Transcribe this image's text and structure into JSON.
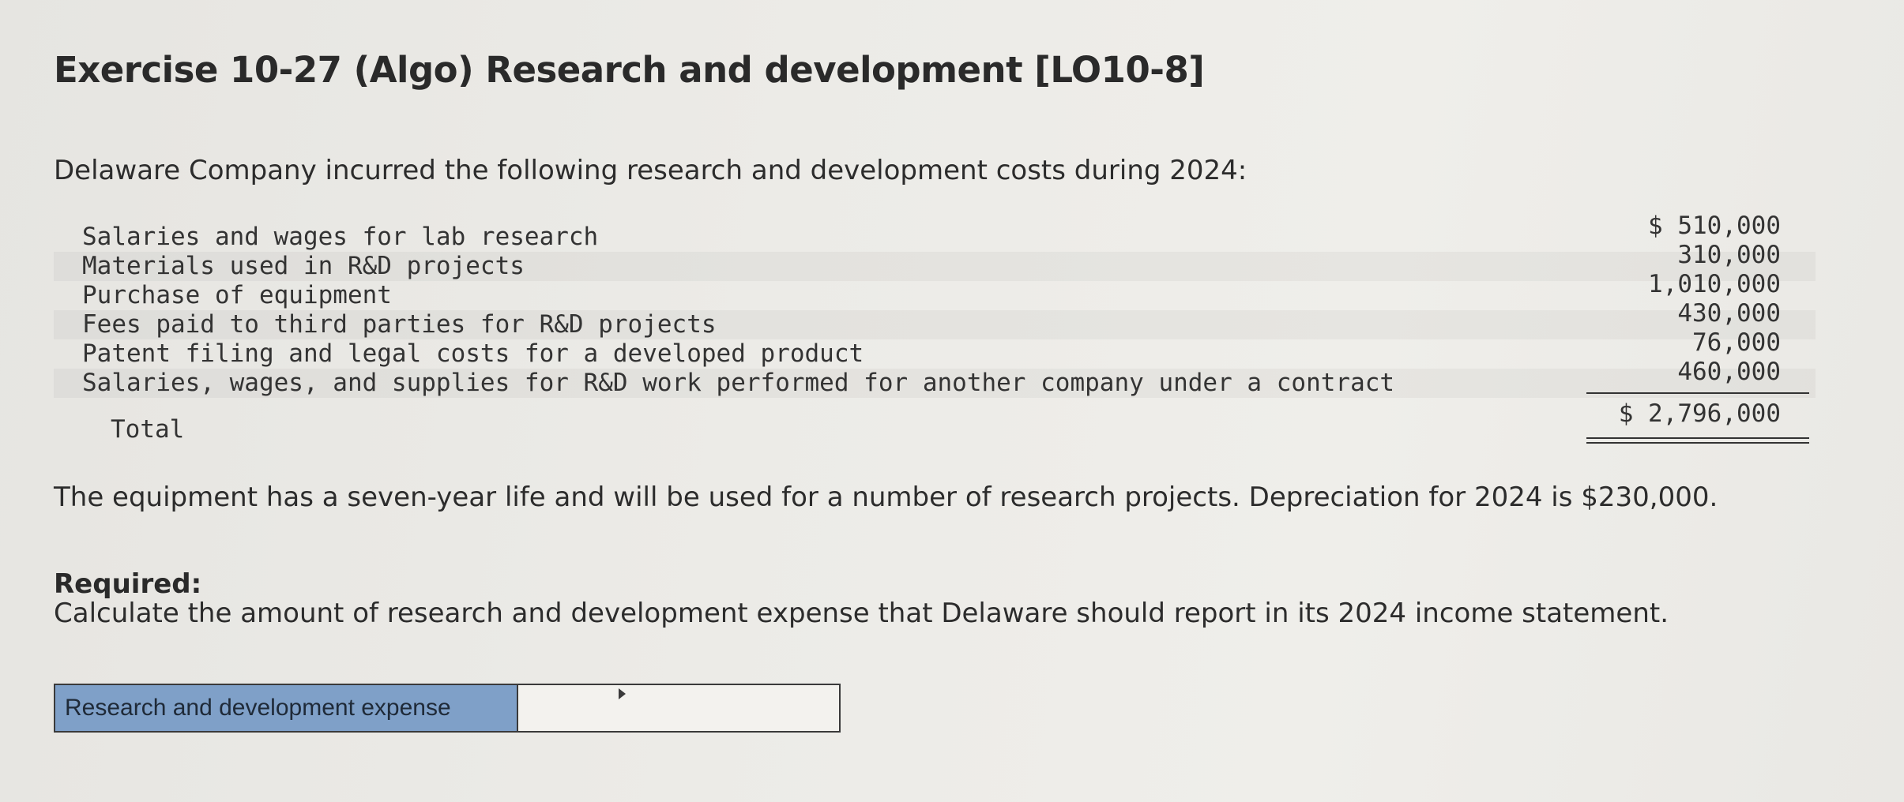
{
  "header": {
    "title": "Exercise 10-27 (Algo) Research and development [LO10-8]"
  },
  "problem": {
    "intro": "Delaware Company incurred the following research and development costs during 2024:",
    "costs": [
      {
        "label": "Salaries and wages for lab research",
        "amount": "$ 510,000"
      },
      {
        "label": "Materials used in R&D projects",
        "amount": "310,000"
      },
      {
        "label": "Purchase of equipment",
        "amount": "1,010,000"
      },
      {
        "label": "Fees paid to third parties for R&D projects",
        "amount": "430,000"
      },
      {
        "label": "Patent filing and legal costs for a developed product",
        "amount": "76,000"
      },
      {
        "label": "Salaries, wages, and supplies for R&D work performed for another company under a contract",
        "amount": "460,000"
      }
    ],
    "total_label": "Total",
    "total_amount": "$ 2,796,000",
    "equipment_note": "The equipment has a seven-year life and will be used for a number of research projects. Depreciation for 2024 is $230,000.",
    "required_label": "Required:",
    "required_text": "Calculate the amount of research and development expense that Delaware should report in its 2024 income statement."
  },
  "answer": {
    "label": "Research and development expense",
    "value": "",
    "placeholder": ""
  }
}
